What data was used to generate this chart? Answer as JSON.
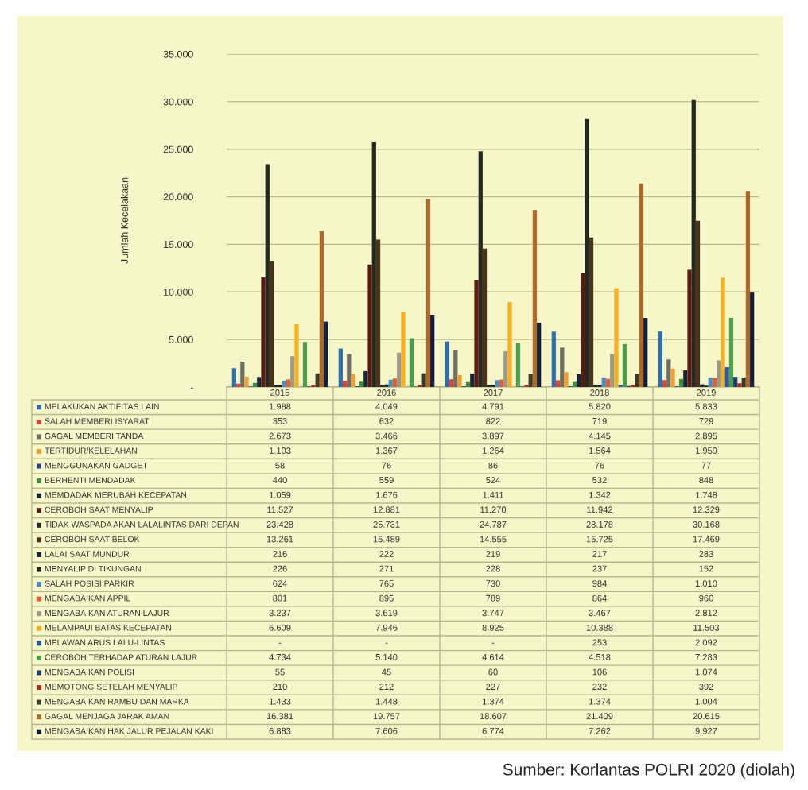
{
  "chart_data": {
    "type": "bar",
    "ylabel": "Jumlah Kecelakaan",
    "categories": [
      "2015",
      "2016",
      "2017",
      "2018",
      "2019"
    ],
    "series": [
      {
        "name": "MELAKUKAN AKTIFITAS LAIN",
        "color": "#2e6fb0",
        "values": [
          1988,
          4049,
          4791,
          5820,
          5833
        ],
        "value_labels": [
          "1.988",
          "4.049",
          "4.791",
          "5.820",
          "5.833"
        ]
      },
      {
        "name": "SALAH MEMBERI ISYARAT",
        "color": "#e0453a",
        "values": [
          353,
          632,
          822,
          719,
          729
        ],
        "value_labels": [
          "353",
          "632",
          "822",
          "719",
          "729"
        ]
      },
      {
        "name": "GAGAL MEMBERI TANDA",
        "color": "#6e6e64",
        "values": [
          2673,
          3466,
          3897,
          4145,
          2895
        ],
        "value_labels": [
          "2.673",
          "3.466",
          "3.897",
          "4.145",
          "2.895"
        ]
      },
      {
        "name": "TERTIDUR/KELELAHAN",
        "color": "#f0a030",
        "values": [
          1103,
          1367,
          1264,
          1564,
          1959
        ],
        "value_labels": [
          "1.103",
          "1.367",
          "1.264",
          "1.564",
          "1.959"
        ]
      },
      {
        "name": "MENGGUNAKAN GADGET",
        "color": "#2a3f8a",
        "values": [
          58,
          76,
          86,
          76,
          77
        ],
        "value_labels": [
          "58",
          "76",
          "86",
          "76",
          "77"
        ]
      },
      {
        "name": "BERHENTI MENDADAK",
        "color": "#3f8f3f",
        "values": [
          440,
          559,
          524,
          532,
          848
        ],
        "value_labels": [
          "440",
          "559",
          "524",
          "532",
          "848"
        ]
      },
      {
        "name": "MEMDADAK MERUBAH KECEPATAN",
        "color": "#17263d",
        "values": [
          1059,
          1676,
          1411,
          1342,
          1748
        ],
        "value_labels": [
          "1.059",
          "1.676",
          "1.411",
          "1.342",
          "1.748"
        ]
      },
      {
        "name": "CEROBOH SAAT MENYALIP",
        "color": "#5a1a10",
        "values": [
          11527,
          12881,
          11270,
          11942,
          12329
        ],
        "value_labels": [
          "11.527",
          "12.881",
          "11.270",
          "11.942",
          "12.329"
        ]
      },
      {
        "name": "TIDAK WASPADA AKAN LALALINTAS DARI DEPAN",
        "color": "#232820",
        "values": [
          23428,
          25731,
          24787,
          28178,
          30168
        ],
        "value_labels": [
          "23.428",
          "25.731",
          "24.787",
          "28.178",
          "30.168"
        ]
      },
      {
        "name": "CEROBOH SAAT BELOK",
        "color": "#4a3318",
        "values": [
          13261,
          15489,
          14555,
          15725,
          17469
        ],
        "value_labels": [
          "13.261",
          "15.489",
          "14.555",
          "15.725",
          "17.469"
        ]
      },
      {
        "name": "LALAI SAAT MUNDUR",
        "color": "#1a2438",
        "values": [
          216,
          222,
          219,
          217,
          283
        ],
        "value_labels": [
          "216",
          "222",
          "219",
          "217",
          "283"
        ]
      },
      {
        "name": "MENYALIP DI TIKUNGAN",
        "color": "#202818",
        "values": [
          226,
          271,
          228,
          237,
          152
        ],
        "value_labels": [
          "226",
          "271",
          "228",
          "237",
          "152"
        ]
      },
      {
        "name": "SALAH POSISI PARKIR",
        "color": "#4a8ac8",
        "values": [
          624,
          765,
          730,
          984,
          1010
        ],
        "value_labels": [
          "624",
          "765",
          "730",
          "984",
          "1.010"
        ]
      },
      {
        "name": "MENGABAIKAN APPIL",
        "color": "#e06030",
        "values": [
          801,
          895,
          789,
          864,
          960
        ],
        "value_labels": [
          "801",
          "895",
          "789",
          "864",
          "960"
        ]
      },
      {
        "name": "MENGABAIKAN ATURAN LAJUR",
        "color": "#9a9a88",
        "values": [
          3237,
          3619,
          3747,
          3467,
          2812
        ],
        "value_labels": [
          "3.237",
          "3.619",
          "3.747",
          "3.467",
          "2.812"
        ]
      },
      {
        "name": "MELAMPAUI BATAS KECEPATAN",
        "color": "#f8b020",
        "values": [
          6609,
          7946,
          8925,
          10388,
          11503
        ],
        "value_labels": [
          "6.609",
          "7.946",
          "8.925",
          "10.388",
          "11.503"
        ]
      },
      {
        "name": "MELAWAN ARUS LALU-LINTAS",
        "color": "#2a5aa8",
        "values": [
          null,
          null,
          null,
          253,
          2092
        ],
        "value_labels": [
          "-",
          "-",
          "-",
          "253",
          "2.092"
        ]
      },
      {
        "name": "CEROBOH TERHADAP ATURAN LAJUR",
        "color": "#4aa048",
        "values": [
          4734,
          5140,
          4614,
          4518,
          7283
        ],
        "value_labels": [
          "4.734",
          "5.140",
          "4.614",
          "4.518",
          "7.283"
        ]
      },
      {
        "name": "MENGABAIKAN POLISI",
        "color": "#1e3a78",
        "values": [
          55,
          45,
          60,
          106,
          1074
        ],
        "value_labels": [
          "55",
          "45",
          "60",
          "106",
          "1.074"
        ]
      },
      {
        "name": "MEMOTONG SETELAH MENYALIP",
        "color": "#b02a20",
        "values": [
          210,
          212,
          227,
          232,
          392
        ],
        "value_labels": [
          "210",
          "212",
          "227",
          "232",
          "392"
        ]
      },
      {
        "name": "MENGABAIKAN RAMBU DAN MARKA",
        "color": "#3a3a28",
        "values": [
          1433,
          1448,
          1374,
          1374,
          1004
        ],
        "value_labels": [
          "1.433",
          "1.448",
          "1.374",
          "1.374",
          "1.004"
        ]
      },
      {
        "name": "GAGAL MENJAGA JARAK AMAN",
        "color": "#b06a28",
        "values": [
          16381,
          19757,
          18607,
          21409,
          20615
        ],
        "value_labels": [
          "16.381",
          "19.757",
          "18.607",
          "21.409",
          "20.615"
        ]
      },
      {
        "name": "MENGABAIKAN HAK JALUR PEJALAN KAKI",
        "color": "#141e40",
        "values": [
          6883,
          7606,
          6774,
          7262,
          9927
        ],
        "value_labels": [
          "6.883",
          "7.606",
          "6.774",
          "7.262",
          "9.927"
        ]
      }
    ],
    "ylim": [
      0,
      35000
    ],
    "yticks": [
      {
        "value": 0,
        "label": "-"
      },
      {
        "value": 5000,
        "label": "5.000"
      },
      {
        "value": 10000,
        "label": "10.000"
      },
      {
        "value": 15000,
        "label": "15.000"
      },
      {
        "value": 20000,
        "label": "20.000"
      },
      {
        "value": 25000,
        "label": "25.000"
      },
      {
        "value": 30000,
        "label": "30.000"
      },
      {
        "value": 35000,
        "label": "35.000"
      }
    ],
    "grid": "y",
    "legend": "bottom",
    "tick_labels": "y",
    "annotations": [
      "Sumber: Korlantas POLRI 2020 (diolah)"
    ]
  }
}
